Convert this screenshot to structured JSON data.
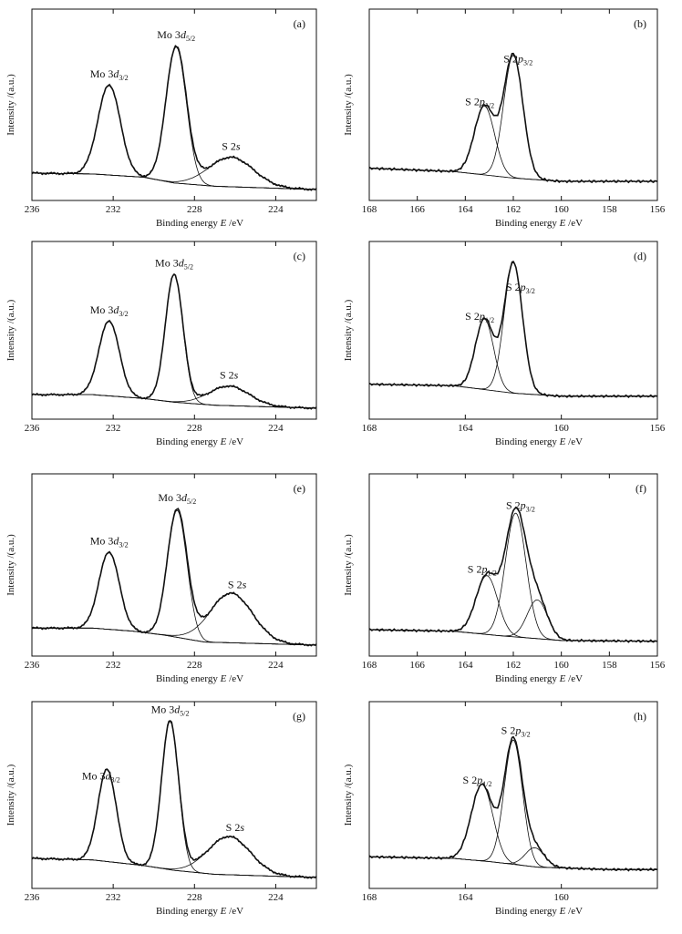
{
  "figure": {
    "x_axis_label": "Binding energy",
    "x_axis_symbol": "E",
    "x_axis_unit": "/eV",
    "y_axis_label": "Intensity /(a.u.)"
  },
  "chart_data": [
    {
      "type": "line",
      "panel": "(a)",
      "region": "Mo 3d",
      "xlim": [
        236,
        222
      ],
      "ticks": [
        236,
        232,
        228,
        224
      ],
      "ylim": [
        0,
        1
      ],
      "background": [
        [
          236,
          0.1
        ],
        [
          233,
          0.095
        ],
        [
          230.5,
          0.075
        ],
        [
          229,
          0.04
        ],
        [
          227,
          0.02
        ],
        [
          222,
          0.0
        ]
      ],
      "components": [
        {
          "name": "Mo 3d3/2",
          "center": 232.2,
          "height": 0.55,
          "width": 0.55
        },
        {
          "name": "Mo 3d5/2",
          "center": 228.9,
          "height": 0.83,
          "width": 0.5
        },
        {
          "name": "S 2s",
          "center": 226.2,
          "height": 0.18,
          "width": 1.1
        }
      ],
      "labels": [
        {
          "main": "Mo 3",
          "italic": "d",
          "sub": "3/2",
          "at": 232.2
        },
        {
          "main": "Mo 3",
          "italic": "d",
          "sub": "5/2",
          "at": 228.9
        },
        {
          "main": "S 2",
          "italic": "s",
          "sub": "",
          "at": 226.2
        }
      ]
    },
    {
      "type": "line",
      "panel": "(b)",
      "region": "S 2p",
      "xlim": [
        168,
        156
      ],
      "ticks": [
        168,
        166,
        164,
        162,
        160,
        158,
        156
      ],
      "ylim": [
        0,
        1
      ],
      "background": [
        [
          168,
          0.13
        ],
        [
          164.5,
          0.11
        ],
        [
          162,
          0.07
        ],
        [
          160,
          0.05
        ],
        [
          156,
          0.05
        ]
      ],
      "components": [
        {
          "name": "S 2p1/2",
          "center": 163.2,
          "height": 0.42,
          "width": 0.42
        },
        {
          "name": "S 2p3/2",
          "center": 162.0,
          "height": 0.75,
          "width": 0.4
        }
      ],
      "labels": [
        {
          "main": "S 2",
          "italic": "p",
          "sub": "1/2",
          "at": 163.4
        },
        {
          "main": "S 2",
          "italic": "p",
          "sub": "3/2",
          "at": 161.8
        }
      ]
    },
    {
      "type": "line",
      "panel": "(c)",
      "region": "Mo 3d",
      "xlim": [
        236,
        222
      ],
      "ticks": [
        236,
        232,
        228,
        224
      ],
      "ylim": [
        0,
        1
      ],
      "background": [
        [
          236,
          0.09
        ],
        [
          233,
          0.09
        ],
        [
          230.5,
          0.065
        ],
        [
          229,
          0.04
        ],
        [
          227,
          0.02
        ],
        [
          222,
          0.0
        ]
      ],
      "components": [
        {
          "name": "Mo 3d3/2",
          "center": 232.2,
          "height": 0.5,
          "width": 0.5
        },
        {
          "name": "Mo 3d5/2",
          "center": 229.0,
          "height": 0.85,
          "width": 0.43
        },
        {
          "name": "S 2s",
          "center": 226.3,
          "height": 0.13,
          "width": 1.0
        }
      ],
      "labels": [
        {
          "main": "Mo 3",
          "italic": "d",
          "sub": "3/2",
          "at": 232.2
        },
        {
          "main": "Mo 3",
          "italic": "d",
          "sub": "5/2",
          "at": 229.0
        },
        {
          "main": "S 2",
          "italic": "s",
          "sub": "",
          "at": 226.3
        }
      ]
    },
    {
      "type": "line",
      "panel": "(d)",
      "region": "S 2p",
      "xlim": [
        168,
        156
      ],
      "ticks": [
        168,
        164,
        160,
        156
      ],
      "ylim": [
        0,
        1
      ],
      "background": [
        [
          168,
          0.16
        ],
        [
          164.5,
          0.15
        ],
        [
          162,
          0.1
        ],
        [
          160,
          0.08
        ],
        [
          156,
          0.08
        ]
      ],
      "components": [
        {
          "name": "S 2p1/2",
          "center": 163.2,
          "height": 0.47,
          "width": 0.38
        },
        {
          "name": "S 2p3/2",
          "center": 162.0,
          "height": 0.87,
          "width": 0.38
        }
      ],
      "labels": [
        {
          "main": "S 2",
          "italic": "p",
          "sub": "1/2",
          "at": 163.4
        },
        {
          "main": "S 2",
          "italic": "p",
          "sub": "3/2",
          "at": 161.7
        }
      ]
    },
    {
      "type": "line",
      "panel": "(e)",
      "region": "Mo 3d",
      "xlim": [
        236,
        222
      ],
      "ticks": [
        236,
        232,
        228,
        224
      ],
      "ylim": [
        0,
        1
      ],
      "background": [
        [
          236,
          0.11
        ],
        [
          233,
          0.11
        ],
        [
          231,
          0.09
        ],
        [
          229.5,
          0.065
        ],
        [
          227.5,
          0.02
        ],
        [
          222,
          0.0
        ]
      ],
      "components": [
        {
          "name": "Mo 3d3/2",
          "center": 232.2,
          "height": 0.5,
          "width": 0.5
        },
        {
          "name": "Mo 3d5/2",
          "center": 228.85,
          "height": 0.82,
          "width": 0.48
        },
        {
          "name": "S 2s",
          "center": 226.2,
          "height": 0.32,
          "width": 1.05
        }
      ],
      "labels": [
        {
          "main": "Mo 3",
          "italic": "d",
          "sub": "3/2",
          "at": 232.2
        },
        {
          "main": "Mo 3",
          "italic": "d",
          "sub": "5/2",
          "at": 228.85
        },
        {
          "main": "S 2",
          "italic": "s",
          "sub": "",
          "at": 225.9
        }
      ]
    },
    {
      "type": "line",
      "panel": "(f)",
      "region": "S 2p",
      "xlim": [
        168,
        156
      ],
      "ticks": [
        168,
        166,
        164,
        162,
        160,
        158,
        156
      ],
      "ylim": [
        0,
        1
      ],
      "background": [
        [
          168,
          0.1
        ],
        [
          164.5,
          0.09
        ],
        [
          162.5,
          0.06
        ],
        [
          160,
          0.03
        ],
        [
          156,
          0.025
        ]
      ],
      "components": [
        {
          "name": "S 2p1/2",
          "center": 163.1,
          "height": 0.38,
          "width": 0.45
        },
        {
          "name": "S 2p3/2",
          "center": 161.9,
          "height": 0.8,
          "width": 0.43
        },
        {
          "name": "component 3",
          "center": 161.0,
          "height": 0.25,
          "width": 0.42
        }
      ],
      "labels": [
        {
          "main": "S 2",
          "italic": "p",
          "sub": "1/2",
          "at": 163.3
        },
        {
          "main": "S 2",
          "italic": "p",
          "sub": "3/2",
          "at": 161.7
        }
      ]
    },
    {
      "type": "line",
      "panel": "(g)",
      "region": "Mo 3d",
      "xlim": [
        236,
        222
      ],
      "ticks": [
        236,
        232,
        228,
        224
      ],
      "ylim": [
        0,
        1
      ],
      "background": [
        [
          236,
          0.12
        ],
        [
          233,
          0.11
        ],
        [
          230.5,
          0.075
        ],
        [
          229,
          0.045
        ],
        [
          227,
          0.02
        ],
        [
          222,
          0.0
        ]
      ],
      "components": [
        {
          "name": "Mo 3d3/2",
          "center": 232.3,
          "height": 0.58,
          "width": 0.45
        },
        {
          "name": "Mo 3d5/2",
          "center": 229.2,
          "height": 0.93,
          "width": 0.42
        },
        {
          "name": "S 2s",
          "center": 226.3,
          "height": 0.24,
          "width": 1.05
        }
      ],
      "labels": [
        {
          "main": "Mo 3",
          "italic": "d",
          "sub": "3/2",
          "at": 232.6
        },
        {
          "main": "Mo 3",
          "italic": "d",
          "sub": "5/2",
          "at": 229.2
        },
        {
          "main": "S 2",
          "italic": "s",
          "sub": "",
          "at": 226.0
        }
      ]
    },
    {
      "type": "line",
      "panel": "(h)",
      "region": "S 2p",
      "xlim": [
        168,
        156
      ],
      "ticks": [
        168,
        164,
        160
      ],
      "ylim": [
        0,
        1
      ],
      "background": [
        [
          168,
          0.13
        ],
        [
          164.5,
          0.12
        ],
        [
          163,
          0.1
        ],
        [
          161,
          0.065
        ],
        [
          158,
          0.05
        ],
        [
          156,
          0.05
        ]
      ],
      "components": [
        {
          "name": "S 2p1/2",
          "center": 163.3,
          "height": 0.48,
          "width": 0.45
        },
        {
          "name": "S 2p3/2",
          "center": 162.0,
          "height": 0.78,
          "width": 0.38
        },
        {
          "name": "component 3",
          "center": 161.1,
          "height": 0.12,
          "width": 0.4
        }
      ],
      "labels": [
        {
          "main": "S 2",
          "italic": "p",
          "sub": "1/2",
          "at": 163.5
        },
        {
          "main": "S 2",
          "italic": "p",
          "sub": "3/2",
          "at": 161.9
        }
      ]
    }
  ]
}
